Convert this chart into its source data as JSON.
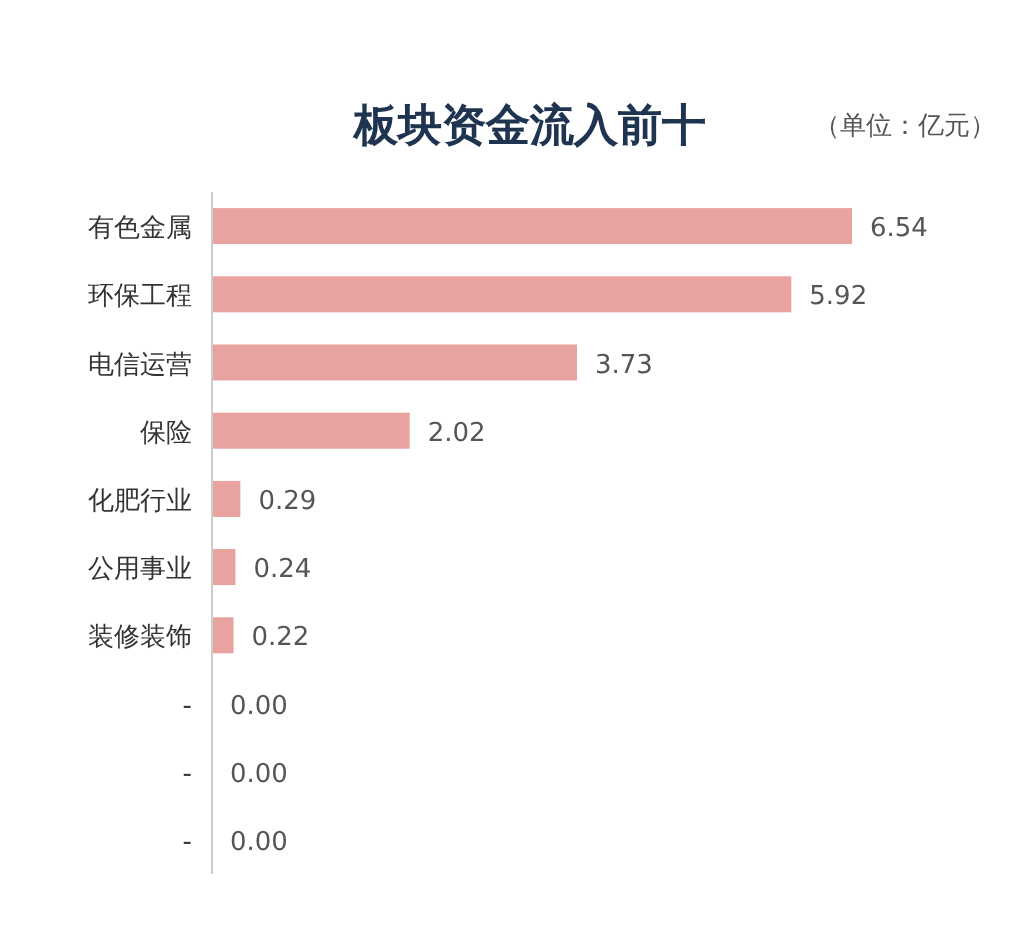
{
  "chart_data": {
    "type": "bar",
    "orientation": "horizontal",
    "title": "板块资金流入前十",
    "annotations": [
      "（单位：亿元）"
    ],
    "categories": [
      "有色金属",
      "环保工程",
      "电信运营",
      "保险",
      "化肥行业",
      "公用事业",
      "装修装饰",
      "-",
      "-",
      "-"
    ],
    "values": [
      6.54,
      5.92,
      3.73,
      2.02,
      0.29,
      0.24,
      0.22,
      0.0,
      0.0,
      0.0
    ],
    "value_labels": [
      "6.54",
      "5.92",
      "3.73",
      "2.02",
      "0.29",
      "0.24",
      "0.22",
      "0.00",
      "0.00",
      "0.00"
    ],
    "color": "#e8a3a0"
  }
}
